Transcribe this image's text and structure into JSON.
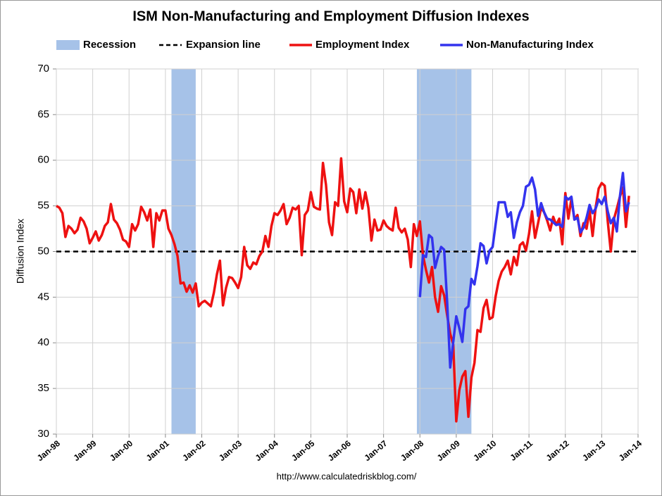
{
  "chart_data": {
    "type": "line",
    "title": "ISM Non-Manufacturing and Employment Diffusion Indexes",
    "y_label": "Diffusion Index",
    "source": "http://www.calculatedriskblog.com/",
    "recession_label": "Recession",
    "recession_color": "#a6c2e8",
    "recessions": [
      {
        "start": "2001-03",
        "end": "2001-11"
      },
      {
        "start": "2007-12",
        "end": "2009-06"
      }
    ],
    "expansion_label": "Expansion line",
    "expansion_line": 50,
    "x": [
      "1998-01",
      "1998-02",
      "1998-03",
      "1998-04",
      "1998-05",
      "1998-06",
      "1998-07",
      "1998-08",
      "1998-09",
      "1998-10",
      "1998-11",
      "1998-12",
      "1999-01",
      "1999-02",
      "1999-03",
      "1999-04",
      "1999-05",
      "1999-06",
      "1999-07",
      "1999-08",
      "1999-09",
      "1999-10",
      "1999-11",
      "1999-12",
      "2000-01",
      "2000-02",
      "2000-03",
      "2000-04",
      "2000-05",
      "2000-06",
      "2000-07",
      "2000-08",
      "2000-09",
      "2000-10",
      "2000-11",
      "2000-12",
      "2001-01",
      "2001-02",
      "2001-03",
      "2001-04",
      "2001-05",
      "2001-06",
      "2001-07",
      "2001-08",
      "2001-09",
      "2001-10",
      "2001-11",
      "2001-12",
      "2002-01",
      "2002-02",
      "2002-03",
      "2002-04",
      "2002-05",
      "2002-06",
      "2002-07",
      "2002-08",
      "2002-09",
      "2002-10",
      "2002-11",
      "2002-12",
      "2003-01",
      "2003-02",
      "2003-03",
      "2003-04",
      "2003-05",
      "2003-06",
      "2003-07",
      "2003-08",
      "2003-09",
      "2003-10",
      "2003-11",
      "2003-12",
      "2004-01",
      "2004-02",
      "2004-03",
      "2004-04",
      "2004-05",
      "2004-06",
      "2004-07",
      "2004-08",
      "2004-09",
      "2004-10",
      "2004-11",
      "2004-12",
      "2005-01",
      "2005-02",
      "2005-03",
      "2005-04",
      "2005-05",
      "2005-06",
      "2005-07",
      "2005-08",
      "2005-09",
      "2005-10",
      "2005-11",
      "2005-12",
      "2006-01",
      "2006-02",
      "2006-03",
      "2006-04",
      "2006-05",
      "2006-06",
      "2006-07",
      "2006-08",
      "2006-09",
      "2006-10",
      "2006-11",
      "2006-12",
      "2007-01",
      "2007-02",
      "2007-03",
      "2007-04",
      "2007-05",
      "2007-06",
      "2007-07",
      "2007-08",
      "2007-09",
      "2007-10",
      "2007-11",
      "2007-12",
      "2008-01",
      "2008-02",
      "2008-03",
      "2008-04",
      "2008-05",
      "2008-06",
      "2008-07",
      "2008-08",
      "2008-09",
      "2008-10",
      "2008-11",
      "2008-12",
      "2009-01",
      "2009-02",
      "2009-03",
      "2009-04",
      "2009-05",
      "2009-06",
      "2009-07",
      "2009-08",
      "2009-09",
      "2009-10",
      "2009-11",
      "2009-12",
      "2010-01",
      "2010-02",
      "2010-03",
      "2010-04",
      "2010-05",
      "2010-06",
      "2010-07",
      "2010-08",
      "2010-09",
      "2010-10",
      "2010-11",
      "2010-12",
      "2011-01",
      "2011-02",
      "2011-03",
      "2011-04",
      "2011-05",
      "2011-06",
      "2011-07",
      "2011-08",
      "2011-09",
      "2011-10",
      "2011-11",
      "2011-12",
      "2012-01",
      "2012-02",
      "2012-03",
      "2012-04",
      "2012-05",
      "2012-06",
      "2012-07",
      "2012-08",
      "2012-09",
      "2012-10",
      "2012-11",
      "2012-12",
      "2013-01",
      "2013-02",
      "2013-03",
      "2013-04",
      "2013-05",
      "2013-06",
      "2013-07",
      "2013-08",
      "2013-09",
      "2013-10"
    ],
    "series": [
      {
        "name": "Employment Index",
        "color": "#ee1111",
        "values": [
          55,
          54.8,
          54.2,
          51.6,
          52.8,
          52.5,
          52,
          52.4,
          53.7,
          53.3,
          52.5,
          50.9,
          51.5,
          52.2,
          51.2,
          51.8,
          52.8,
          53.2,
          55.2,
          53.5,
          53.1,
          52.4,
          51.3,
          51.1,
          50.5,
          53,
          52.3,
          53,
          54.9,
          54.3,
          53.4,
          54.6,
          50.5,
          54.2,
          53.4,
          54.5,
          54.5,
          52.5,
          51.8,
          50.8,
          49.5,
          46.5,
          46.6,
          45.6,
          46.3,
          45.5,
          46.5,
          44,
          44.4,
          44.6,
          44.3,
          44,
          45.5,
          47.5,
          49,
          44.1,
          46,
          47.2,
          47.1,
          46.6,
          46,
          47.2,
          50.5,
          48.5,
          48.1,
          48.8,
          48.6,
          49.5,
          50,
          51.7,
          50.5,
          52.8,
          54.2,
          54,
          54.5,
          55.2,
          53,
          53.7,
          54.8,
          54.6,
          55,
          49.6,
          54,
          54.5,
          56.5,
          54.9,
          54.7,
          54.6,
          59.7,
          57.3,
          53.2,
          51.8,
          55.4,
          55,
          60.2,
          55.5,
          54.3,
          56.9,
          56.5,
          54.2,
          56.8,
          54.7,
          56.5,
          54.8,
          51.2,
          53.5,
          52.3,
          52.4,
          53.4,
          52.8,
          52.5,
          52.3,
          54.8,
          52.6,
          52.1,
          52.5,
          51.3,
          48.3,
          53,
          51.7,
          53.3,
          49.6,
          48,
          46.6,
          48.3,
          45,
          43.4,
          46.2,
          45.2,
          43,
          41,
          39.8,
          31.4,
          34.8,
          36.3,
          36.9,
          31.9,
          36.2,
          37.8,
          41.4,
          41.2,
          43.8,
          44.7,
          42.6,
          42.8,
          45.1,
          46.8,
          47.8,
          48.3,
          49,
          47.5,
          49.4,
          48.5,
          50.7,
          51,
          50.1,
          51.9,
          54.4,
          51.5,
          53.1,
          54.8,
          54.3,
          53.4,
          52.3,
          53.8,
          52.9,
          53.6,
          50.8,
          56.4,
          53.6,
          55.8,
          53.5,
          54,
          51.7,
          53.1,
          52.5,
          54.5,
          51.7,
          54.8,
          56.9,
          57.5,
          57.2,
          53.3,
          50,
          53.5,
          54.7,
          56,
          57,
          52.7,
          56.1
        ]
      },
      {
        "name": "Non-Manufacturing Index",
        "color": "#3333ee",
        "values": [
          null,
          null,
          null,
          null,
          null,
          null,
          null,
          null,
          null,
          null,
          null,
          null,
          null,
          null,
          null,
          null,
          null,
          null,
          null,
          null,
          null,
          null,
          null,
          null,
          null,
          null,
          null,
          null,
          null,
          null,
          null,
          null,
          null,
          null,
          null,
          null,
          null,
          null,
          null,
          null,
          null,
          null,
          null,
          null,
          null,
          null,
          null,
          null,
          null,
          null,
          null,
          null,
          null,
          null,
          null,
          null,
          null,
          null,
          null,
          null,
          null,
          null,
          null,
          null,
          null,
          null,
          null,
          null,
          null,
          null,
          null,
          null,
          null,
          null,
          null,
          null,
          null,
          null,
          null,
          null,
          null,
          null,
          null,
          null,
          null,
          null,
          null,
          null,
          null,
          null,
          null,
          null,
          null,
          null,
          null,
          null,
          null,
          null,
          null,
          null,
          null,
          null,
          null,
          null,
          null,
          null,
          null,
          null,
          null,
          null,
          null,
          null,
          null,
          null,
          null,
          null,
          null,
          null,
          null,
          null,
          45,
          49.6,
          49.4,
          51.8,
          51.5,
          48.2,
          49.5,
          50.5,
          50.2,
          44.4,
          37.3,
          40.1,
          42.9,
          41.6,
          40.1,
          43.7,
          44,
          47,
          46.4,
          48.4,
          50.9,
          50.6,
          48.7,
          50.1,
          50.5,
          53,
          55.4,
          55.4,
          55.4,
          53.8,
          54.3,
          51.5,
          53.2,
          54.3,
          55,
          57.1,
          57.3,
          58.1,
          56.8,
          53.9,
          55.3,
          54.3,
          53.6,
          53.5,
          53.2,
          52.9,
          53,
          52.7,
          56,
          55.7,
          56,
          53.5,
          53.7,
          52.1,
          52.6,
          53.7,
          55.1,
          54.2,
          54.7,
          55.7,
          55.2,
          56,
          54.4,
          53.1,
          53.7,
          52.2,
          56,
          58.6,
          54.4,
          55.4
        ]
      }
    ],
    "xlim": [
      "1998-01",
      "2014-01"
    ],
    "xticks": [
      {
        "value": "1998-01",
        "label": "Jan-98"
      },
      {
        "value": "1999-01",
        "label": "Jan-99"
      },
      {
        "value": "2000-01",
        "label": "Jan-00"
      },
      {
        "value": "2001-01",
        "label": "Jan-01"
      },
      {
        "value": "2002-01",
        "label": "Jan-02"
      },
      {
        "value": "2003-01",
        "label": "Jan-03"
      },
      {
        "value": "2004-01",
        "label": "Jan-04"
      },
      {
        "value": "2005-01",
        "label": "Jan-05"
      },
      {
        "value": "2006-01",
        "label": "Jan-06"
      },
      {
        "value": "2007-01",
        "label": "Jan-07"
      },
      {
        "value": "2008-01",
        "label": "Jan-08"
      },
      {
        "value": "2009-01",
        "label": "Jan-09"
      },
      {
        "value": "2010-01",
        "label": "Jan-10"
      },
      {
        "value": "2011-01",
        "label": "Jan-11"
      },
      {
        "value": "2012-01",
        "label": "Jan-12"
      },
      {
        "value": "2013-01",
        "label": "Jan-13"
      },
      {
        "value": "2014-01",
        "label": "Jan-14"
      }
    ],
    "ylim": [
      30,
      70
    ],
    "yticks": [
      30,
      35,
      40,
      45,
      50,
      55,
      60,
      65,
      70
    ],
    "grid": true
  }
}
